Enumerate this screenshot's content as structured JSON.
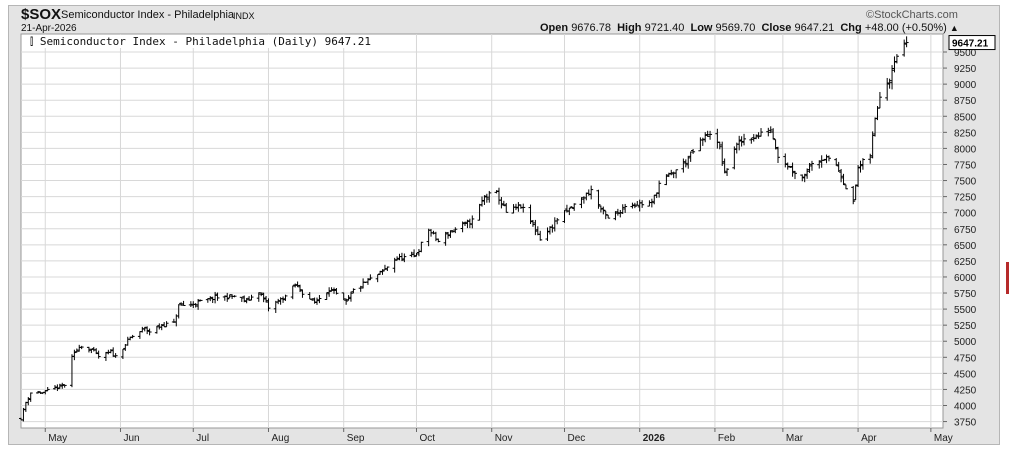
{
  "header": {
    "symbol": "$SOX",
    "name": "Semiconductor Index - Philadelphia",
    "exchange": "INDX",
    "date": "21-Apr-2026",
    "brand": "©StockCharts.com",
    "open_label": "Open",
    "open_value": "9676.78",
    "high_label": "High",
    "high_value": "9721.40",
    "low_label": "Low",
    "low_value": "9569.70",
    "close_label": "Close",
    "close_value": "9647.21",
    "chg_label": "Chg",
    "chg_value": "+48.00 (+0.50%)",
    "chg_arrow": "▲"
  },
  "plot": {
    "legend_text": "Semiconductor Index - Philadelphia (Daily) 9647.21",
    "legend_icon": "ohlc-bar-icon",
    "last_price_label": "9647.21"
  },
  "colors": {
    "frame": "#e4e4e4",
    "plot_bg": "#ffffff",
    "grid": "#d8d8d8",
    "bar": "#000000",
    "accent": "#b62a2a"
  },
  "chart_data": {
    "type": "ohlc",
    "title": "Semiconductor Index - Philadelphia (Daily) 9647.21",
    "xlabel": "",
    "ylabel": "",
    "ylim": [
      3650,
      9780
    ],
    "y_ticks": [
      3750,
      4000,
      4250,
      4500,
      4750,
      5000,
      5250,
      5500,
      5750,
      6000,
      6250,
      6500,
      6750,
      7000,
      7250,
      7500,
      7750,
      8000,
      8250,
      8500,
      8750,
      9000,
      9250,
      9500
    ],
    "x_range": [
      "2025-04-21",
      "2026-05-06"
    ],
    "x_ticks": [
      {
        "date": "2025-05-01",
        "label": "May",
        "bold": false
      },
      {
        "date": "2025-06-01",
        "label": "Jun",
        "bold": false
      },
      {
        "date": "2025-07-01",
        "label": "Jul",
        "bold": false
      },
      {
        "date": "2025-08-01",
        "label": "Aug",
        "bold": false
      },
      {
        "date": "2025-09-01",
        "label": "Sep",
        "bold": false
      },
      {
        "date": "2025-10-01",
        "label": "Oct",
        "bold": false
      },
      {
        "date": "2025-11-01",
        "label": "Nov",
        "bold": false
      },
      {
        "date": "2025-12-01",
        "label": "Dec",
        "bold": false
      },
      {
        "date": "2026-01-01",
        "label": "2026",
        "bold": true
      },
      {
        "date": "2026-02-01",
        "label": "Feb",
        "bold": false
      },
      {
        "date": "2026-03-01",
        "label": "Mar",
        "bold": false
      },
      {
        "date": "2026-04-01",
        "label": "Apr",
        "bold": false
      },
      {
        "date": "2026-05-01",
        "label": "May",
        "bold": false
      }
    ],
    "grid": true,
    "close_anchors": [
      {
        "date": "2025-04-21",
        "close": 3800
      },
      {
        "date": "2025-04-23",
        "close": 4050
      },
      {
        "date": "2025-04-25",
        "close": 4200
      },
      {
        "date": "2025-04-30",
        "close": 4200
      },
      {
        "date": "2025-05-06",
        "close": 4280
      },
      {
        "date": "2025-05-09",
        "close": 4320
      },
      {
        "date": "2025-05-12",
        "close": 4740
      },
      {
        "date": "2025-05-15",
        "close": 4930
      },
      {
        "date": "2025-05-20",
        "close": 4870
      },
      {
        "date": "2025-05-23",
        "close": 4760
      },
      {
        "date": "2025-05-28",
        "close": 4830
      },
      {
        "date": "2025-05-30",
        "close": 4760
      },
      {
        "date": "2025-06-05",
        "close": 5050
      },
      {
        "date": "2025-06-11",
        "close": 5200
      },
      {
        "date": "2025-06-13",
        "close": 5150
      },
      {
        "date": "2025-06-18",
        "close": 5250
      },
      {
        "date": "2025-06-23",
        "close": 5280
      },
      {
        "date": "2025-06-25",
        "close": 5550
      },
      {
        "date": "2025-06-30",
        "close": 5570
      },
      {
        "date": "2025-07-10",
        "close": 5680
      },
      {
        "date": "2025-07-18",
        "close": 5700
      },
      {
        "date": "2025-07-23",
        "close": 5620
      },
      {
        "date": "2025-07-28",
        "close": 5780
      },
      {
        "date": "2025-08-01",
        "close": 5520
      },
      {
        "date": "2025-08-08",
        "close": 5700
      },
      {
        "date": "2025-08-12",
        "close": 5870
      },
      {
        "date": "2025-08-15",
        "close": 5760
      },
      {
        "date": "2025-08-20",
        "close": 5600
      },
      {
        "date": "2025-08-26",
        "close": 5820
      },
      {
        "date": "2025-09-02",
        "close": 5600
      },
      {
        "date": "2025-09-05",
        "close": 5790
      },
      {
        "date": "2025-09-11",
        "close": 5940
      },
      {
        "date": "2025-09-17",
        "close": 6080
      },
      {
        "date": "2025-09-22",
        "close": 6280
      },
      {
        "date": "2025-09-30",
        "close": 6320
      },
      {
        "date": "2025-10-02",
        "close": 6430
      },
      {
        "date": "2025-10-06",
        "close": 6740
      },
      {
        "date": "2025-10-10",
        "close": 6550
      },
      {
        "date": "2025-10-14",
        "close": 6680
      },
      {
        "date": "2025-10-20",
        "close": 6800
      },
      {
        "date": "2025-10-24",
        "close": 6880
      },
      {
        "date": "2025-10-29",
        "close": 7250
      },
      {
        "date": "2025-11-03",
        "close": 7300
      },
      {
        "date": "2025-11-07",
        "close": 7000
      },
      {
        "date": "2025-11-13",
        "close": 7100
      },
      {
        "date": "2025-11-18",
        "close": 6800
      },
      {
        "date": "2025-11-21",
        "close": 6600
      },
      {
        "date": "2025-11-25",
        "close": 6750
      },
      {
        "date": "2025-11-28",
        "close": 6900
      },
      {
        "date": "2025-12-03",
        "close": 7050
      },
      {
        "date": "2025-12-09",
        "close": 7250
      },
      {
        "date": "2025-12-12",
        "close": 7350
      },
      {
        "date": "2025-12-16",
        "close": 7050
      },
      {
        "date": "2025-12-19",
        "close": 6900
      },
      {
        "date": "2025-12-23",
        "close": 7000
      },
      {
        "date": "2025-12-26",
        "close": 7120
      },
      {
        "date": "2026-01-06",
        "close": 7150
      },
      {
        "date": "2026-01-09",
        "close": 7450
      },
      {
        "date": "2026-01-14",
        "close": 7600
      },
      {
        "date": "2026-01-20",
        "close": 7800
      },
      {
        "date": "2026-01-26",
        "close": 8100
      },
      {
        "date": "2026-01-30",
        "close": 8250
      },
      {
        "date": "2026-02-03",
        "close": 8000
      },
      {
        "date": "2026-02-05",
        "close": 7600
      },
      {
        "date": "2026-02-09",
        "close": 8000
      },
      {
        "date": "2026-02-13",
        "close": 8150
      },
      {
        "date": "2026-02-19",
        "close": 8200
      },
      {
        "date": "2026-02-24",
        "close": 8300
      },
      {
        "date": "2026-02-27",
        "close": 7900
      },
      {
        "date": "2026-03-04",
        "close": 7700
      },
      {
        "date": "2026-03-09",
        "close": 7550
      },
      {
        "date": "2026-03-13",
        "close": 7800
      },
      {
        "date": "2026-03-18",
        "close": 7850
      },
      {
        "date": "2026-03-23",
        "close": 7750
      },
      {
        "date": "2026-03-27",
        "close": 7400
      },
      {
        "date": "2026-03-30",
        "close": 7150
      },
      {
        "date": "2026-04-01",
        "close": 7700
      },
      {
        "date": "2026-04-06",
        "close": 7900
      },
      {
        "date": "2026-04-08",
        "close": 8450
      },
      {
        "date": "2026-04-10",
        "close": 8850
      },
      {
        "date": "2026-04-14",
        "close": 9100
      },
      {
        "date": "2026-04-16",
        "close": 9400
      },
      {
        "date": "2026-04-21",
        "close": 9647
      }
    ]
  }
}
